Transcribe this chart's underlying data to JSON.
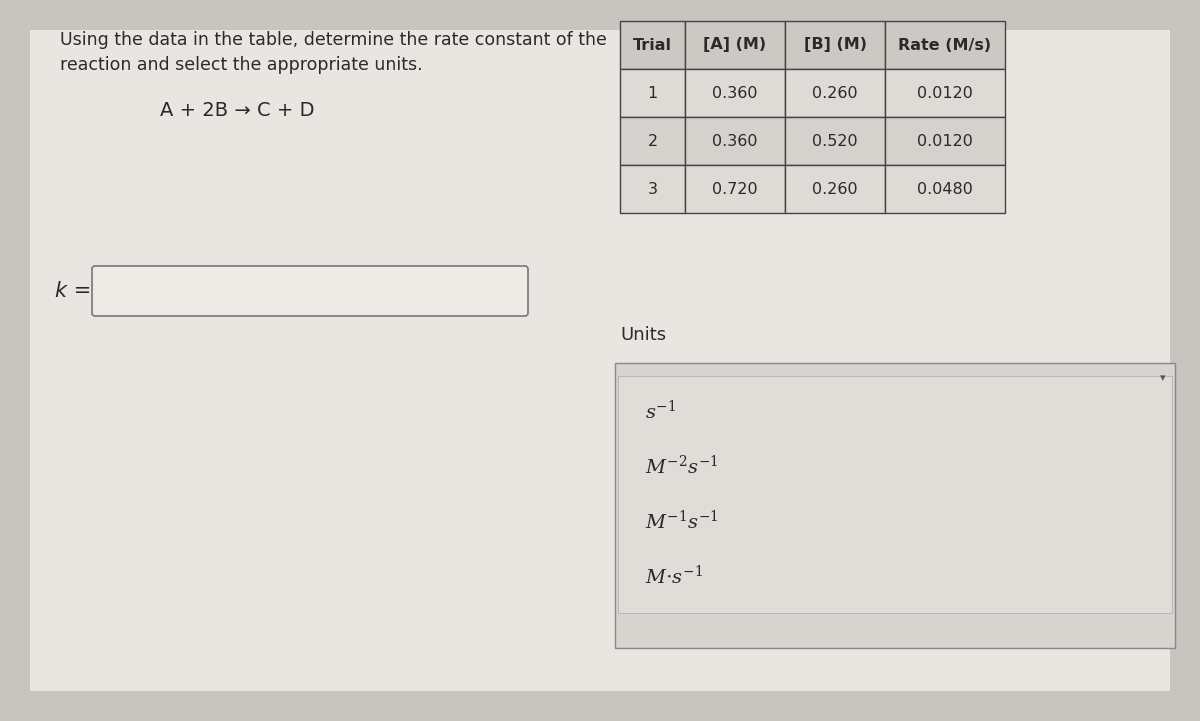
{
  "fig_width": 12.0,
  "fig_height": 7.21,
  "dpi": 100,
  "bg_color": "#c8c4bf",
  "panel_color": "#e8e5e0",
  "table_bg": "#e0ddd8",
  "table_header_bg": "#c8c5c0",
  "table_row1_bg": "#dedad5",
  "table_row2_bg": "#d8d4cf",
  "dropdown_bg": "#dedad5",
  "input_box_bg": "#e8e5e0",
  "title_text_line1": "Using the data in the table, determine the rate constant of the",
  "title_text_line2": "reaction and select the appropriate units.",
  "reaction_text": "A + 2B → C + D",
  "k_label": "k =",
  "units_label": "Units",
  "table_headers": [
    "Trial",
    "[A] (M)",
    "[B] (M)",
    "Rate (M/s)"
  ],
  "table_rows": [
    [
      "1",
      "0.360",
      "0.260",
      "0.0120"
    ],
    [
      "2",
      "0.360",
      "0.520",
      "0.0120"
    ],
    [
      "3",
      "0.720",
      "0.260",
      "0.0480"
    ]
  ],
  "units_options_math": [
    "$s^{-1}$",
    "$M^{-2}s^{-1}$",
    "$M^{-1}s^{-1}$",
    "$M{\\cdot}s^{-1}$"
  ],
  "text_color": "#2a2a2a",
  "border_color": "#888888",
  "font_size_title": 12.5,
  "font_size_reaction": 14,
  "font_size_k": 15,
  "font_size_table_header": 11.5,
  "font_size_table_data": 11.5,
  "font_size_units_label": 13,
  "font_size_units_options": 14
}
